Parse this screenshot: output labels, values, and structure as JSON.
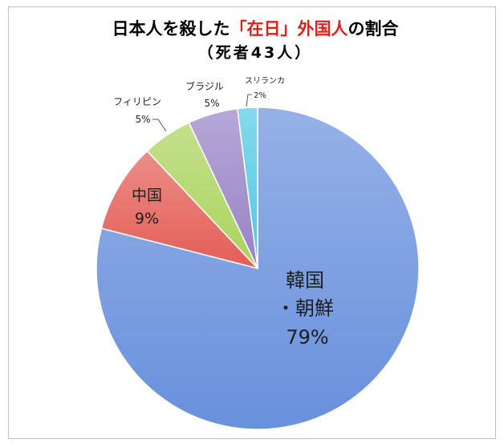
{
  "chart_data": {
    "type": "pie",
    "title": "日本人を殺した「在日」外国人の割合",
    "title_highlight": "「在日」外国人",
    "subtitle": "（死者43人）",
    "labels": [
      "韓国・朝鮮",
      "中国",
      "フィリピン",
      "ブラジル",
      "スリランカ"
    ],
    "values": [
      79,
      9,
      5,
      5,
      2
    ],
    "value_labels": [
      "79%",
      "9%",
      "5%",
      "5%",
      "2%"
    ]
  },
  "colors": {
    "title_text": "#000000",
    "title_highlight": "#e0201b",
    "slices": [
      "#6890dc",
      "#e35d55",
      "#aad35c",
      "#9682c6",
      "#4fc8e4"
    ],
    "slice_border": "#ffffff",
    "label_text": "#1e1e1e",
    "leader_line": "#555555",
    "frame_border": "#bfbfbf"
  }
}
